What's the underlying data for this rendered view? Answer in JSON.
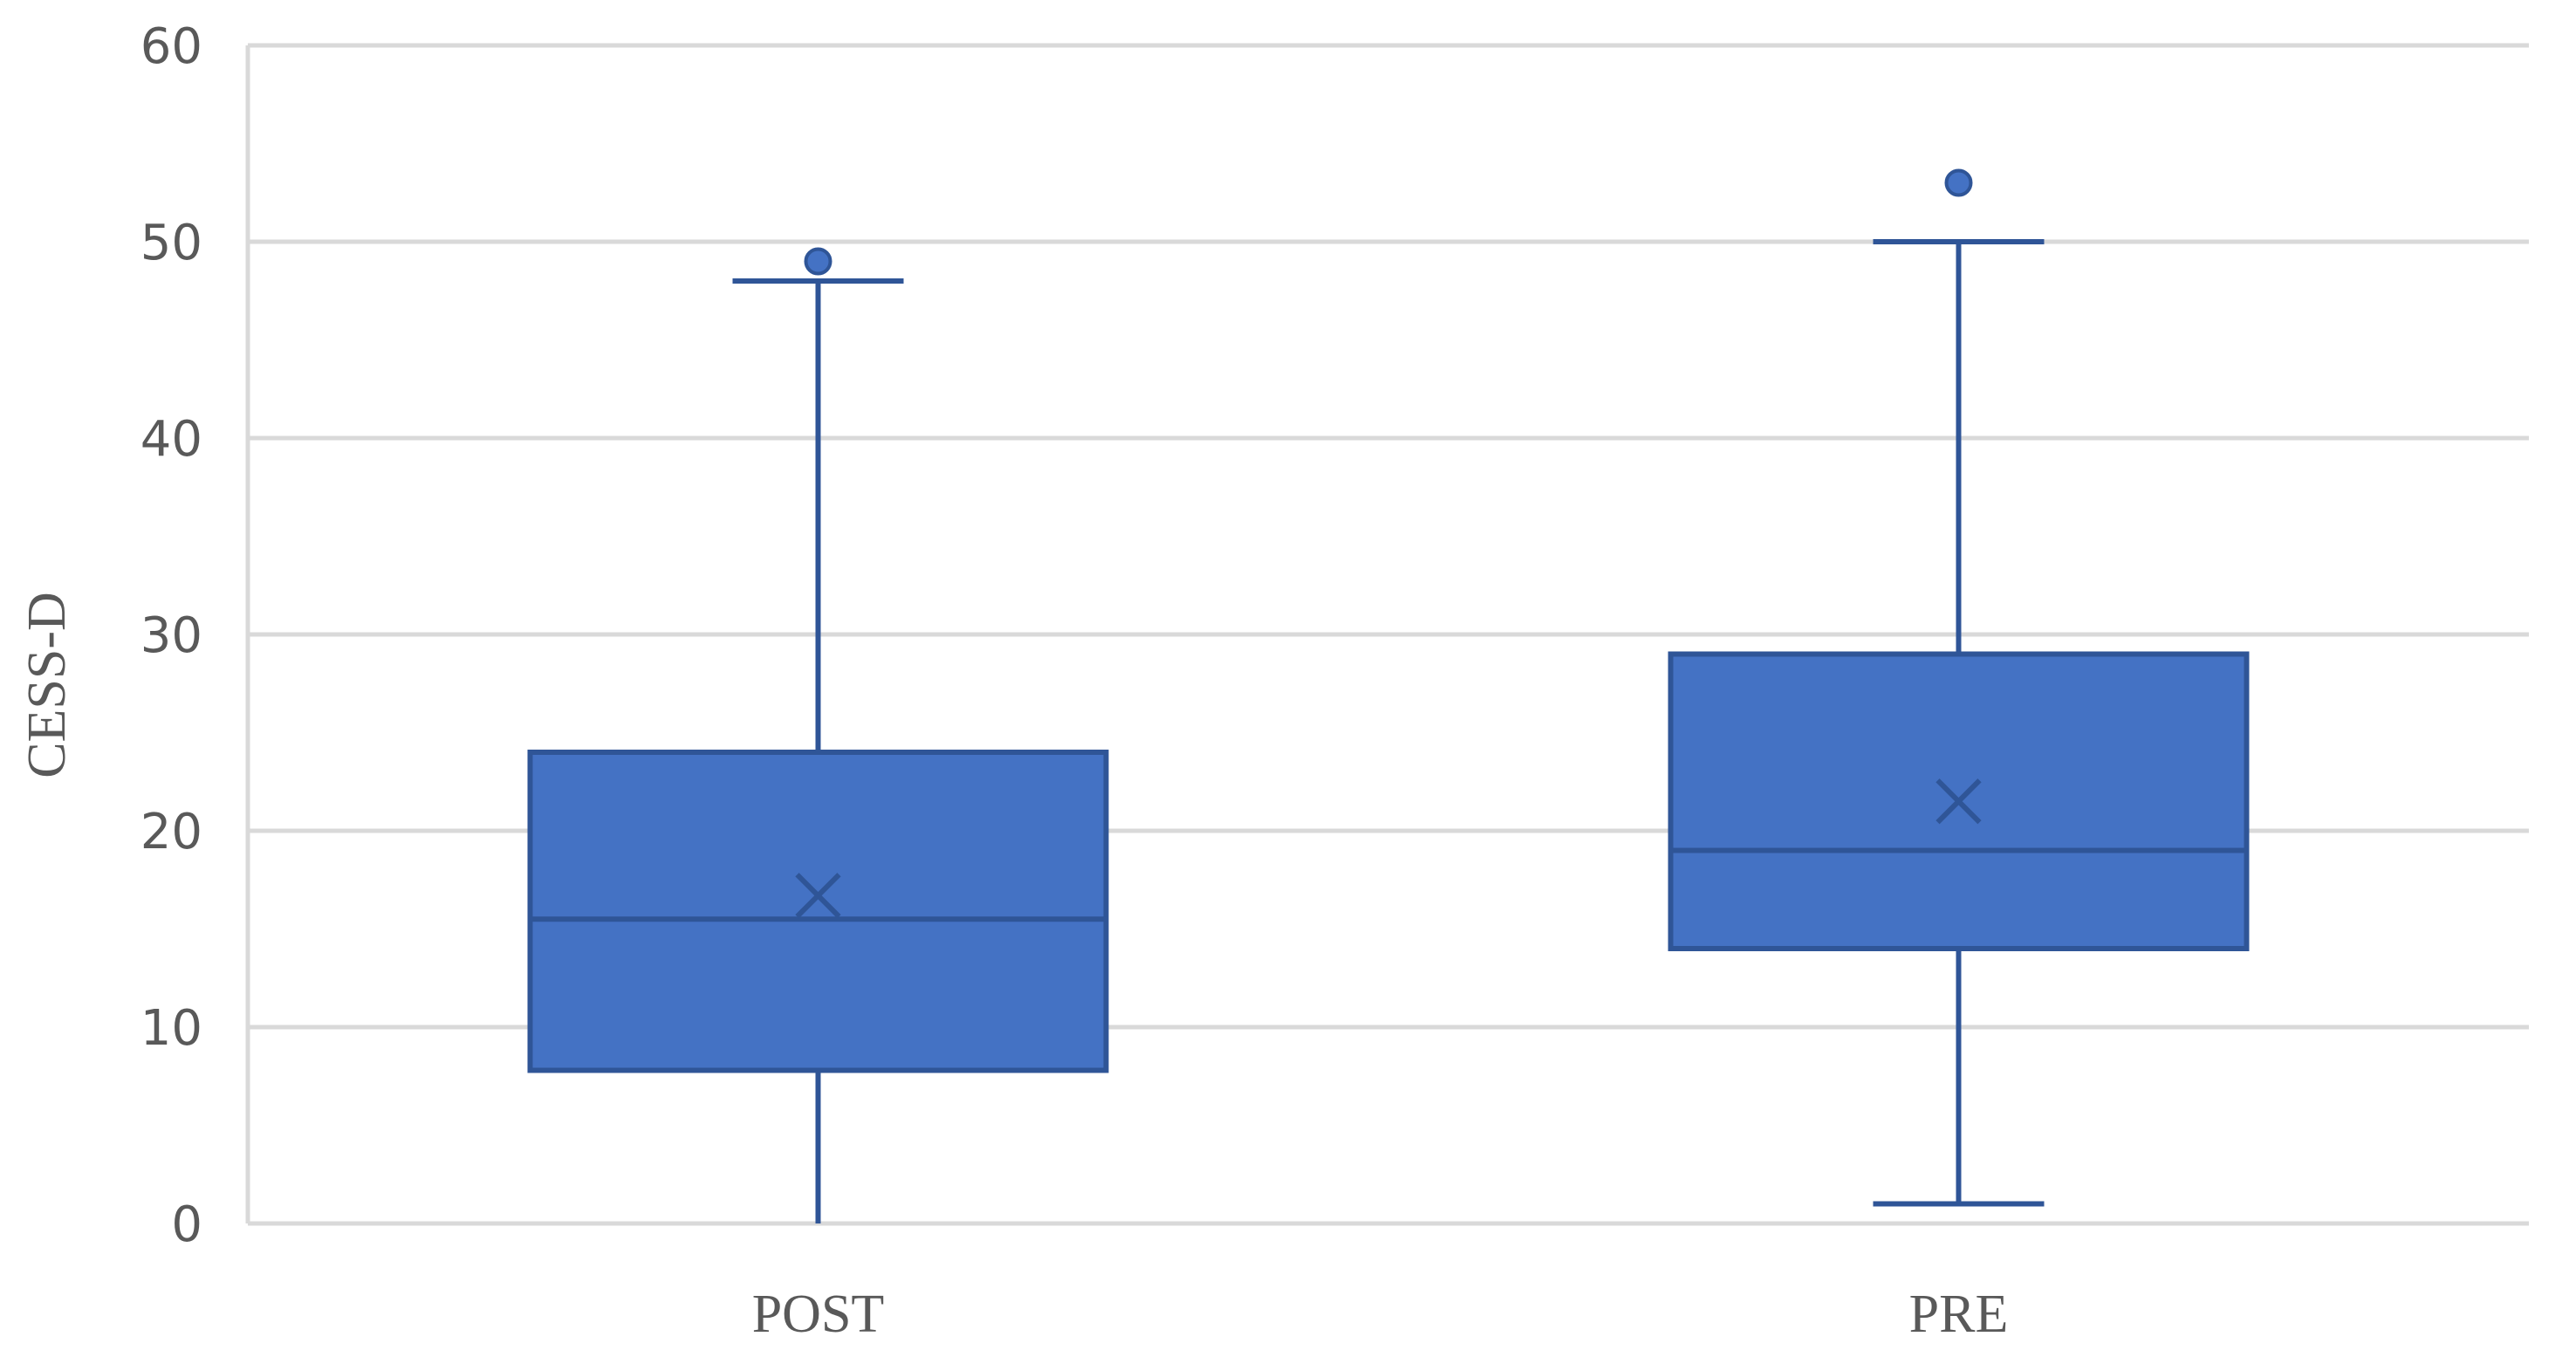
{
  "chart_data": {
    "type": "boxplot",
    "ylabel": "CESS-D",
    "xlabel": "",
    "ylim": [
      0,
      60
    ],
    "yticks": [
      0,
      10,
      20,
      30,
      40,
      50,
      60
    ],
    "grid": true,
    "categories": [
      "POST",
      "PRE"
    ],
    "boxes": [
      {
        "category": "POST",
        "min": 0,
        "q1": 7.8,
        "median": 15.5,
        "mean": 16.7,
        "q3": 24,
        "max": 48,
        "outliers": [
          49
        ]
      },
      {
        "category": "PRE",
        "min": 1,
        "q1": 14,
        "median": 19,
        "mean": 21.5,
        "q3": 29,
        "max": 50,
        "outliers": [
          53
        ]
      }
    ],
    "colors": {
      "box_fill": "#4472C4",
      "box_stroke": "#2F5597",
      "grid": "#D9D9D9",
      "text": "#595959"
    }
  }
}
